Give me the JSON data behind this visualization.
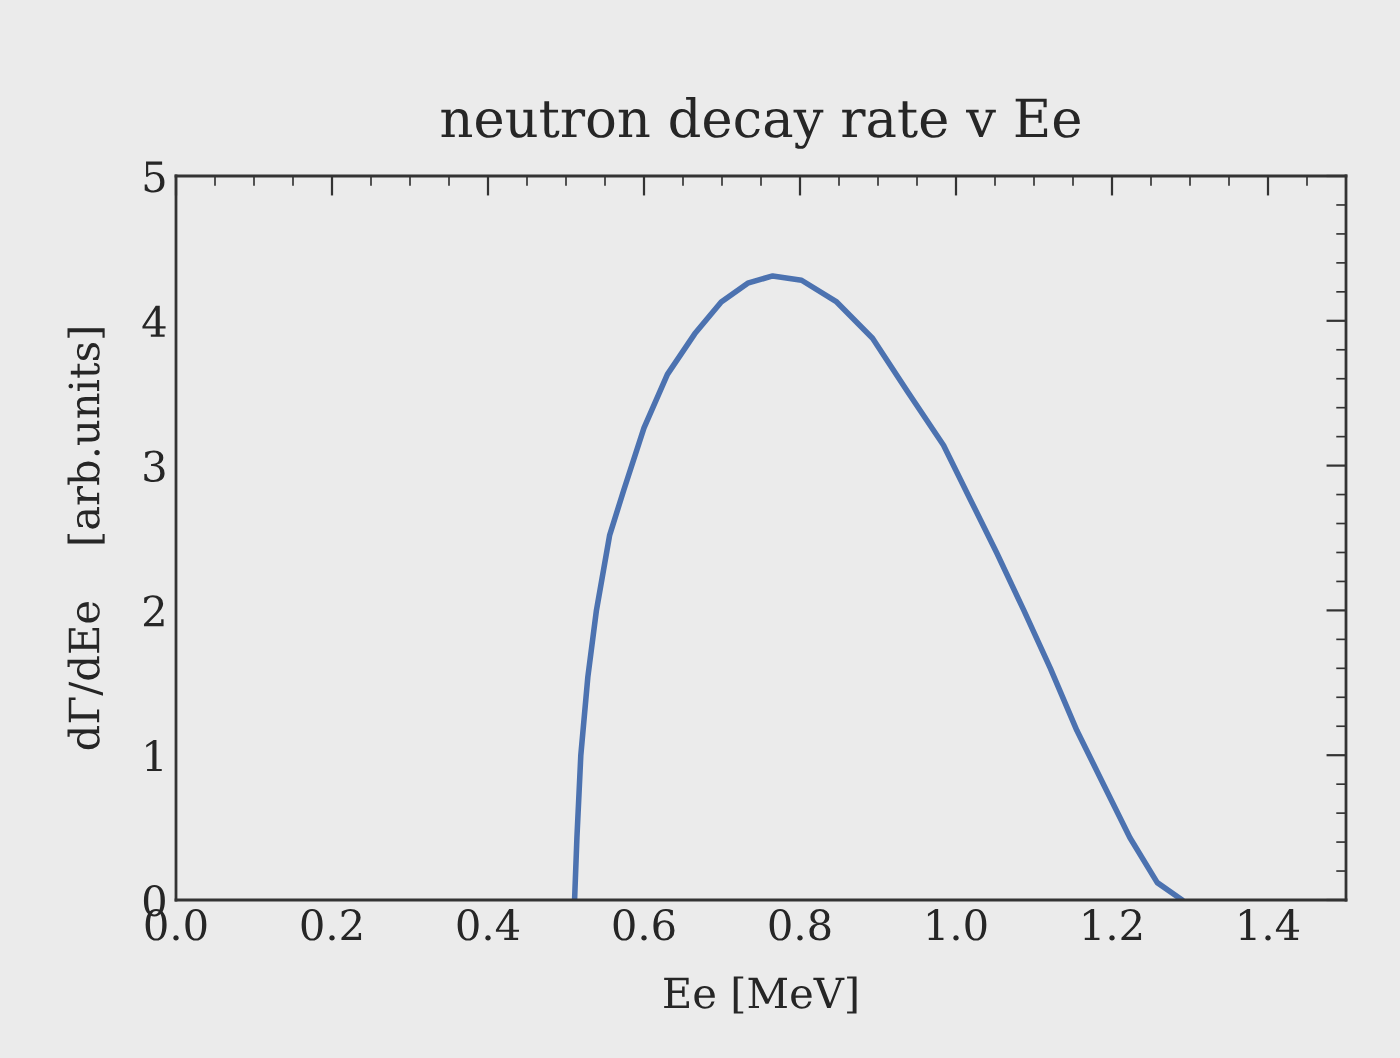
{
  "chart_data": {
    "type": "line",
    "title": "neutron decay rate v Ee",
    "xlabel": "Ee [MeV]",
    "ylabel": "dΓ/dEe    [arb.units]",
    "xlim": [
      0,
      1.5
    ],
    "ylim": [
      0,
      5
    ],
    "xticks": [
      {
        "value": 0,
        "label": "0.0"
      },
      0.2,
      0.4,
      0.6,
      0.8,
      {
        "value": 1,
        "label": "1.0"
      },
      1.2,
      1.4
    ],
    "yticks": [
      0,
      1,
      2,
      3,
      4,
      5
    ],
    "grid": false,
    "series": [
      {
        "color": "#4c72b0",
        "x": [
          0.511,
          0.514,
          0.519,
          0.528,
          0.539,
          0.556,
          0.574,
          0.6,
          0.63,
          0.665,
          0.699,
          0.733,
          0.765,
          0.802,
          0.847,
          0.893,
          0.938,
          0.984,
          1.018,
          1.052,
          1.087,
          1.121,
          1.155,
          1.189,
          1.223,
          1.258,
          1.29
        ],
        "values": [
          0,
          0.43,
          1.0,
          1.54,
          2.0,
          2.52,
          2.83,
          3.26,
          3.63,
          3.91,
          4.13,
          4.26,
          4.31,
          4.28,
          4.13,
          3.88,
          3.51,
          3.14,
          2.77,
          2.4,
          2.0,
          1.6,
          1.17,
          0.8,
          0.43,
          0.12,
          0
        ]
      }
    ]
  }
}
